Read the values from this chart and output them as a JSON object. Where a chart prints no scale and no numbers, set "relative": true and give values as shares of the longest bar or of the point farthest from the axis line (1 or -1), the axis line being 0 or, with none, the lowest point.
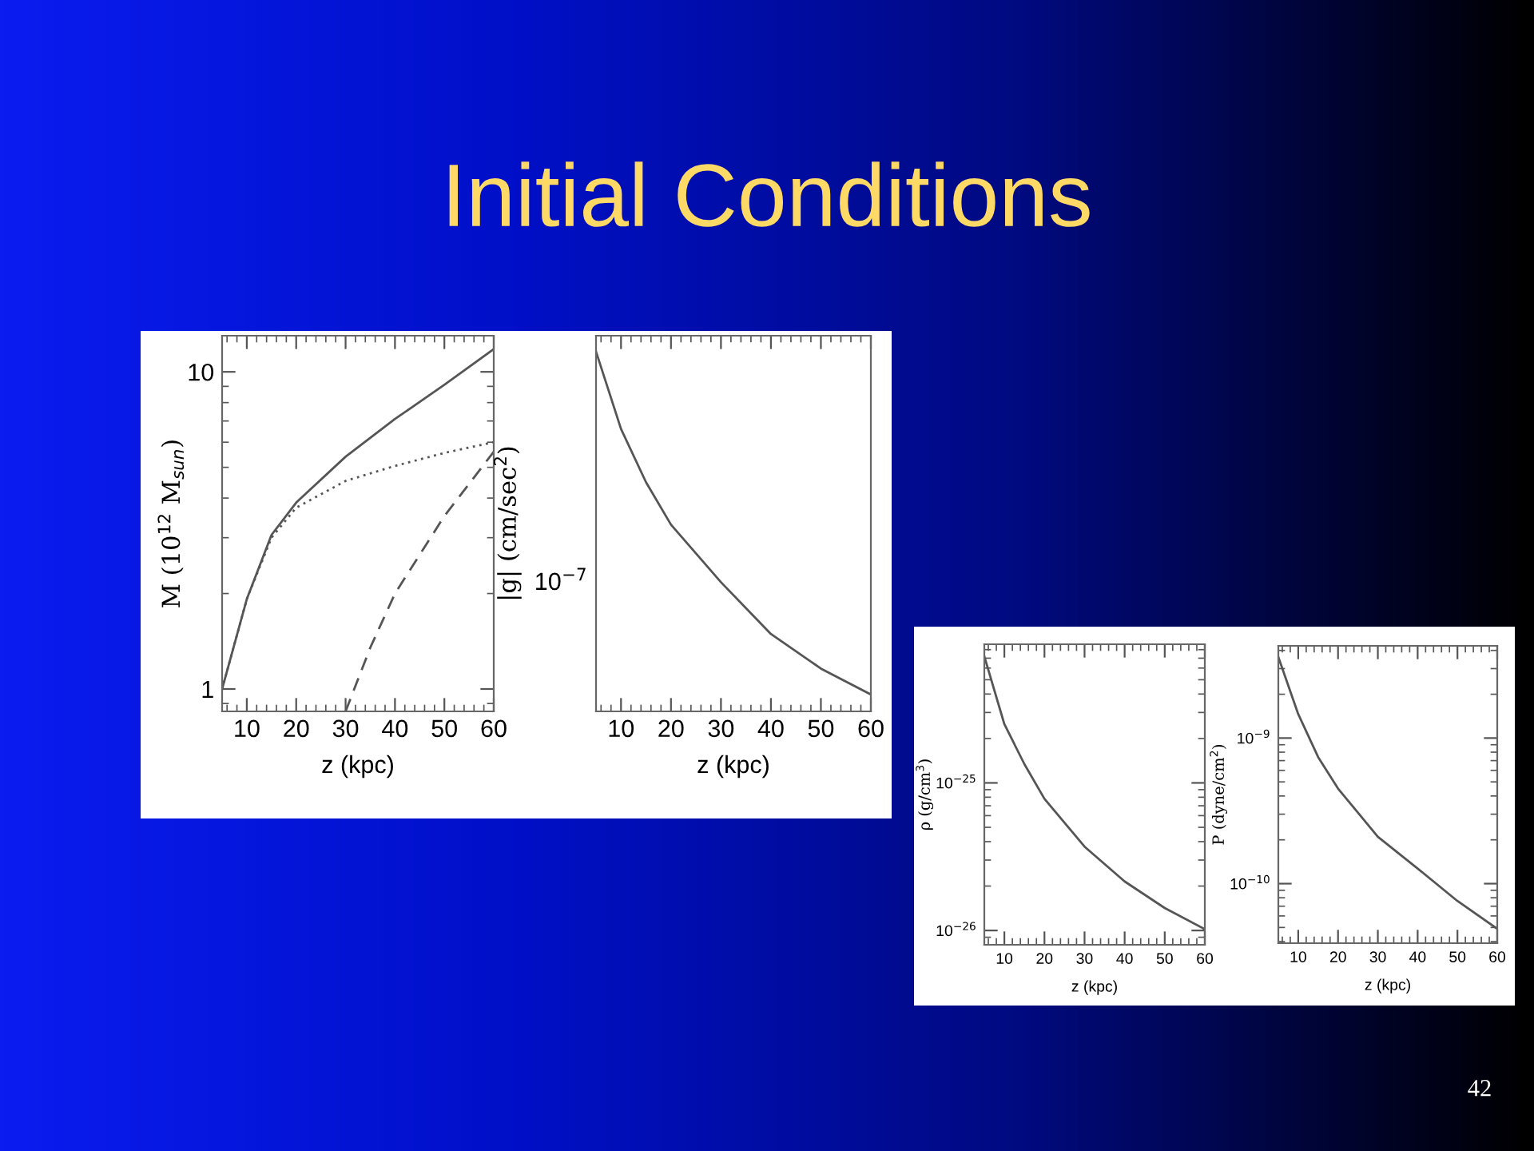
{
  "chart_data": [
    {
      "type": "other",
      "title": "Initial Conditions",
      "annotations": [
        "42"
      ]
    },
    {
      "type": "line",
      "xlabel": "z (kpc)",
      "ylabel": "M (10$^{12}$ M$_{sun}$)",
      "log": "y",
      "xlim": [
        5,
        60
      ],
      "ylim": [
        0.85,
        13
      ],
      "xticks": [
        10,
        20,
        30,
        40,
        50,
        60
      ],
      "yticks": [
        1,
        10
      ],
      "grid": false,
      "legend": false,
      "series": [
        {
          "color": "#555555",
          "line_style": "solid",
          "x": [
            5,
            10,
            15,
            20,
            30,
            40,
            50,
            60
          ],
          "values": [
            1.0,
            1.92,
            3.06,
            3.87,
            5.4,
            7.1,
            9.1,
            11.8
          ]
        },
        {
          "color": "#555555",
          "line_style": "dotted",
          "x": [
            5,
            10,
            15,
            20,
            30,
            40,
            50,
            60
          ],
          "values": [
            1.0,
            1.92,
            3.0,
            3.73,
            4.53,
            5.05,
            5.55,
            6.0
          ]
        },
        {
          "color": "#555555",
          "line_style": "dashed",
          "x": [
            30,
            35,
            40,
            50,
            60
          ],
          "values": [
            0.85,
            1.35,
            2.0,
            3.51,
            5.6
          ]
        }
      ]
    },
    {
      "type": "line",
      "xlabel": "z (kpc)",
      "ylabel": "|g| (cm/sec$^{2}$)",
      "relative": true,
      "xlim": [
        5,
        60
      ],
      "xticks": [
        10,
        20,
        30,
        40,
        50,
        60
      ],
      "grid": false,
      "legend": false,
      "annotations": [
        "10$^{−7}$"
      ],
      "series": [
        {
          "color": "#555555",
          "line_style": "solid",
          "x": [
            5,
            10,
            15,
            20,
            30,
            40,
            50,
            60
          ],
          "values": [
            1.0,
            0.785,
            0.637,
            0.519,
            0.359,
            0.215,
            0.119,
            0.047
          ]
        }
      ]
    },
    {
      "type": "line",
      "xlabel": "z (kpc)",
      "ylabel": "ρ (g/cm$^{3}$)",
      "log": "y",
      "xlim": [
        5,
        60
      ],
      "ylim": [
        8e-27,
        8.7e-25
      ],
      "xticks": [
        10,
        20,
        30,
        40,
        50,
        60
      ],
      "yticks": [
        {
          "value": 1e-26,
          "label": "10$^{−26}$"
        },
        {
          "value": 1e-25,
          "label": "10$^{−25}$"
        }
      ],
      "grid": false,
      "legend": false,
      "series": [
        {
          "color": "#555555",
          "line_style": "solid",
          "x": [
            5,
            10,
            15,
            20,
            30,
            40,
            50,
            60
          ],
          "values": [
            7.2e-25,
            2.5e-25,
            1.34e-25,
            7.8e-26,
            3.7e-26,
            2.15e-26,
            1.42e-26,
            1.02e-26
          ]
        }
      ]
    },
    {
      "type": "line",
      "xlabel": "z (kpc)",
      "ylabel": "P (dyne/cm$^{2}$)",
      "log": "y",
      "xlim": [
        5,
        60
      ],
      "ylim": [
        3.9e-11,
        4.3e-09
      ],
      "xticks": [
        10,
        20,
        30,
        40,
        50,
        60
      ],
      "yticks": [
        {
          "value": 1e-10,
          "label": "10$^{−10}$"
        },
        {
          "value": 1e-09,
          "label": "10$^{−9}$"
        }
      ],
      "grid": false,
      "legend": false,
      "series": [
        {
          "color": "#555555",
          "line_style": "solid",
          "x": [
            5,
            10,
            15,
            20,
            30,
            40,
            50,
            60
          ],
          "values": [
            3.6e-09,
            1.46e-09,
            7.4e-10,
            4.5e-10,
            2.1e-10,
            1.27e-10,
            7.6e-11,
            4.9e-11
          ]
        }
      ]
    }
  ]
}
